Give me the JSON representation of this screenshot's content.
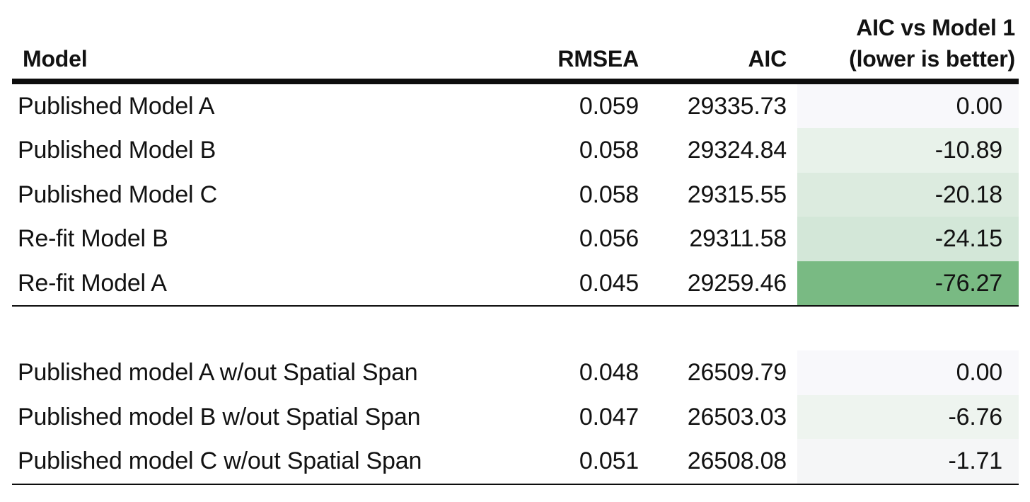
{
  "table": {
    "headers": {
      "model": "Model",
      "rmsea": "RMSEA",
      "aic": "AIC",
      "delta_line1": "AIC vs Model 1",
      "delta_line2": "(lower is better)"
    },
    "sections": [
      {
        "rows": [
          {
            "model": "Published Model A",
            "rmsea": "0.059",
            "aic": "29335.73",
            "delta": "0.00",
            "delta_bg": "#f8f8fb"
          },
          {
            "model": "Published Model B",
            "rmsea": "0.058",
            "aic": "29324.84",
            "delta": "-10.89",
            "delta_bg": "#e8f2ea"
          },
          {
            "model": "Published Model C",
            "rmsea": "0.058",
            "aic": "29315.55",
            "delta": "-20.18",
            "delta_bg": "#dcebdf"
          },
          {
            "model": "Re-fit Model B",
            "rmsea": "0.056",
            "aic": "29311.58",
            "delta": "-24.15",
            "delta_bg": "#d3e7d8"
          },
          {
            "model": "Re-fit Model A",
            "rmsea": "0.045",
            "aic": "29259.46",
            "delta": "-76.27",
            "delta_bg": "#79ba83"
          }
        ]
      },
      {
        "rows": [
          {
            "model": "Published model A w/out Spatial Span",
            "rmsea": "0.048",
            "aic": "26509.79",
            "delta": "0.00",
            "delta_bg": "#f8f8fb"
          },
          {
            "model": "Published model B w/out Spatial Span",
            "rmsea": "0.047",
            "aic": "26503.03",
            "delta": "-6.76",
            "delta_bg": "#eef4ef"
          },
          {
            "model": "Published model C w/out Spatial Span",
            "rmsea": "0.051",
            "aic": "26508.08",
            "delta": "-1.71",
            "delta_bg": "#f5f6f7"
          }
        ]
      }
    ]
  },
  "colors": {
    "rule": "#0d0d0d",
    "text": "#121212",
    "background": "#ffffff",
    "delta_scale_max_green": "#79ba83",
    "delta_scale_near_zero": "#f8f8fb"
  },
  "chart_data": {
    "type": "table",
    "title": "",
    "columns": [
      "Model",
      "RMSEA",
      "AIC",
      "AIC vs Model 1 (lower is better)"
    ],
    "sections": [
      {
        "rows": [
          [
            "Published Model A",
            0.059,
            29335.73,
            0.0
          ],
          [
            "Published Model B",
            0.058,
            29324.84,
            -10.89
          ],
          [
            "Published Model C",
            0.058,
            29315.55,
            -20.18
          ],
          [
            "Re-fit Model B",
            0.056,
            29311.58,
            -24.15
          ],
          [
            "Re-fit Model A",
            0.045,
            29259.46,
            -76.27
          ]
        ]
      },
      {
        "rows": [
          [
            "Published model A w/out Spatial Span",
            0.048,
            26509.79,
            0.0
          ],
          [
            "Published model B w/out Spatial Span",
            0.047,
            26503.03,
            -6.76
          ],
          [
            "Published model C w/out Spatial Span",
            0.051,
            26508.08,
            -1.71
          ]
        ]
      }
    ],
    "conditional_formatting": {
      "column": "AIC vs Model 1 (lower is better)",
      "style": "white-to-green color scale",
      "rule": "more negative delta = darker green"
    }
  }
}
